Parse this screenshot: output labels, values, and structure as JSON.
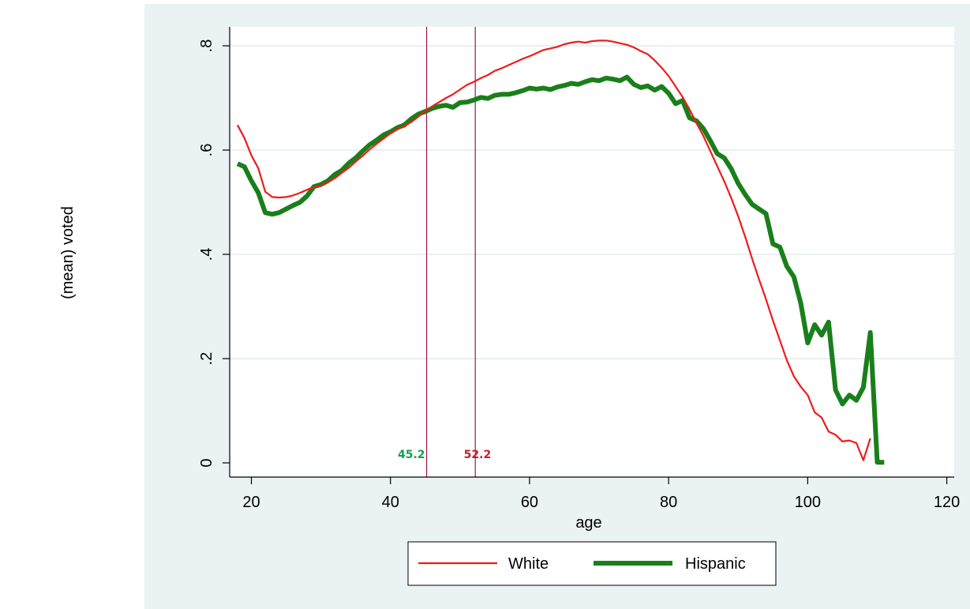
{
  "chart_data": {
    "type": "line",
    "title": "",
    "xlabel": "age",
    "ylabel": "(mean) voted",
    "xlim": [
      18,
      120
    ],
    "ylim": [
      0,
      0.8
    ],
    "x_ticks": [
      20,
      40,
      60,
      80,
      100,
      120
    ],
    "x_tick_labels": [
      "20",
      "40",
      "60",
      "80",
      "100",
      "120"
    ],
    "y_ticks": [
      0,
      0.2,
      0.4,
      0.6,
      0.8
    ],
    "y_tick_labels": [
      "0",
      ".2",
      ".4",
      ".6",
      ".8"
    ],
    "grid": "horizontal",
    "legend_position": "bottom",
    "colors": {
      "white": "#ee1c1c",
      "hispanic": "#1a7f1a",
      "vline": "#a0154a",
      "annot_hispanic": "#14a050",
      "annot_white": "#c0202a",
      "plot_bg": "#ffffff",
      "outer_bg": "#eaf2f3",
      "grid": "#e3ebec"
    },
    "vlines": [
      {
        "x": 45.2,
        "label": "45.2",
        "color_key": "annot_hispanic"
      },
      {
        "x": 52.2,
        "label": "52.2",
        "color_key": "annot_white"
      }
    ],
    "series": [
      {
        "name": "White",
        "color": "#ee1c1c",
        "width": 2.2,
        "points": [
          [
            18,
            0.648
          ],
          [
            19,
            0.623
          ],
          [
            20,
            0.59
          ],
          [
            21,
            0.565
          ],
          [
            22,
            0.52
          ],
          [
            23,
            0.51
          ],
          [
            24,
            0.509
          ],
          [
            25,
            0.51
          ],
          [
            26,
            0.513
          ],
          [
            27,
            0.518
          ],
          [
            28,
            0.524
          ],
          [
            29,
            0.529
          ],
          [
            30,
            0.532
          ],
          [
            31,
            0.538
          ],
          [
            32,
            0.546
          ],
          [
            33,
            0.556
          ],
          [
            34,
            0.566
          ],
          [
            35,
            0.578
          ],
          [
            36,
            0.589
          ],
          [
            37,
            0.601
          ],
          [
            38,
            0.612
          ],
          [
            39,
            0.622
          ],
          [
            40,
            0.632
          ],
          [
            41,
            0.64
          ],
          [
            42,
            0.646
          ],
          [
            43,
            0.654
          ],
          [
            44,
            0.664
          ],
          [
            45,
            0.675
          ],
          [
            46,
            0.684
          ],
          [
            47,
            0.692
          ],
          [
            48,
            0.7
          ],
          [
            49,
            0.707
          ],
          [
            50,
            0.716
          ],
          [
            51,
            0.725
          ],
          [
            52,
            0.731
          ],
          [
            53,
            0.738
          ],
          [
            54,
            0.744
          ],
          [
            55,
            0.752
          ],
          [
            56,
            0.757
          ],
          [
            57,
            0.763
          ],
          [
            58,
            0.769
          ],
          [
            59,
            0.775
          ],
          [
            60,
            0.78
          ],
          [
            61,
            0.786
          ],
          [
            62,
            0.792
          ],
          [
            63,
            0.795
          ],
          [
            64,
            0.798
          ],
          [
            65,
            0.803
          ],
          [
            66,
            0.806
          ],
          [
            67,
            0.808
          ],
          [
            68,
            0.806
          ],
          [
            69,
            0.809
          ],
          [
            70,
            0.81
          ],
          [
            71,
            0.81
          ],
          [
            72,
            0.808
          ],
          [
            73,
            0.805
          ],
          [
            74,
            0.802
          ],
          [
            75,
            0.797
          ],
          [
            76,
            0.79
          ],
          [
            77,
            0.784
          ],
          [
            78,
            0.772
          ],
          [
            79,
            0.758
          ],
          [
            80,
            0.742
          ],
          [
            81,
            0.722
          ],
          [
            82,
            0.702
          ],
          [
            83,
            0.678
          ],
          [
            84,
            0.652
          ],
          [
            85,
            0.627
          ],
          [
            86,
            0.598
          ],
          [
            87,
            0.569
          ],
          [
            88,
            0.54
          ],
          [
            89,
            0.508
          ],
          [
            90,
            0.473
          ],
          [
            91,
            0.434
          ],
          [
            92,
            0.392
          ],
          [
            93,
            0.352
          ],
          [
            94,
            0.314
          ],
          [
            95,
            0.273
          ],
          [
            96,
            0.235
          ],
          [
            97,
            0.197
          ],
          [
            98,
            0.166
          ],
          [
            99,
            0.146
          ],
          [
            100,
            0.13
          ],
          [
            101,
            0.097
          ],
          [
            102,
            0.087
          ],
          [
            103,
            0.06
          ],
          [
            104,
            0.054
          ],
          [
            105,
            0.041
          ],
          [
            106,
            0.043
          ],
          [
            107,
            0.038
          ],
          [
            108,
            0.005
          ],
          [
            109,
            0.047
          ]
        ]
      },
      {
        "name": "Hispanic",
        "color": "#1a7f1a",
        "width": 6,
        "points": [
          [
            18,
            0.574
          ],
          [
            19,
            0.568
          ],
          [
            20,
            0.541
          ],
          [
            21,
            0.518
          ],
          [
            22,
            0.48
          ],
          [
            23,
            0.477
          ],
          [
            24,
            0.48
          ],
          [
            25,
            0.487
          ],
          [
            26,
            0.494
          ],
          [
            27,
            0.5
          ],
          [
            28,
            0.512
          ],
          [
            29,
            0.53
          ],
          [
            30,
            0.534
          ],
          [
            31,
            0.541
          ],
          [
            32,
            0.553
          ],
          [
            33,
            0.561
          ],
          [
            34,
            0.575
          ],
          [
            35,
            0.585
          ],
          [
            36,
            0.598
          ],
          [
            37,
            0.61
          ],
          [
            38,
            0.619
          ],
          [
            39,
            0.629
          ],
          [
            40,
            0.635
          ],
          [
            41,
            0.643
          ],
          [
            42,
            0.648
          ],
          [
            43,
            0.66
          ],
          [
            44,
            0.669
          ],
          [
            45,
            0.674
          ],
          [
            46,
            0.68
          ],
          [
            47,
            0.684
          ],
          [
            48,
            0.686
          ],
          [
            49,
            0.682
          ],
          [
            50,
            0.691
          ],
          [
            51,
            0.692
          ],
          [
            52,
            0.696
          ],
          [
            53,
            0.701
          ],
          [
            54,
            0.699
          ],
          [
            55,
            0.705
          ],
          [
            56,
            0.707
          ],
          [
            57,
            0.707
          ],
          [
            58,
            0.71
          ],
          [
            59,
            0.714
          ],
          [
            60,
            0.719
          ],
          [
            61,
            0.717
          ],
          [
            62,
            0.719
          ],
          [
            63,
            0.716
          ],
          [
            64,
            0.721
          ],
          [
            65,
            0.724
          ],
          [
            66,
            0.728
          ],
          [
            67,
            0.726
          ],
          [
            68,
            0.731
          ],
          [
            69,
            0.735
          ],
          [
            70,
            0.733
          ],
          [
            71,
            0.738
          ],
          [
            72,
            0.736
          ],
          [
            73,
            0.733
          ],
          [
            74,
            0.74
          ],
          [
            75,
            0.726
          ],
          [
            76,
            0.72
          ],
          [
            77,
            0.723
          ],
          [
            78,
            0.715
          ],
          [
            79,
            0.722
          ],
          [
            80,
            0.709
          ],
          [
            81,
            0.689
          ],
          [
            82,
            0.695
          ],
          [
            83,
            0.662
          ],
          [
            84,
            0.656
          ],
          [
            85,
            0.641
          ],
          [
            86,
            0.618
          ],
          [
            87,
            0.593
          ],
          [
            88,
            0.585
          ],
          [
            89,
            0.564
          ],
          [
            90,
            0.536
          ],
          [
            91,
            0.515
          ],
          [
            92,
            0.496
          ],
          [
            93,
            0.487
          ],
          [
            94,
            0.478
          ],
          [
            95,
            0.42
          ],
          [
            96,
            0.414
          ],
          [
            97,
            0.377
          ],
          [
            98,
            0.357
          ],
          [
            99,
            0.306
          ],
          [
            100,
            0.23
          ],
          [
            101,
            0.265
          ],
          [
            102,
            0.245
          ],
          [
            103,
            0.27
          ],
          [
            104,
            0.14
          ],
          [
            105,
            0.113
          ],
          [
            106,
            0.13
          ],
          [
            107,
            0.12
          ],
          [
            108,
            0.145
          ],
          [
            109,
            0.25
          ],
          [
            110,
            0.001
          ],
          [
            111,
            0.001
          ]
        ]
      }
    ]
  }
}
